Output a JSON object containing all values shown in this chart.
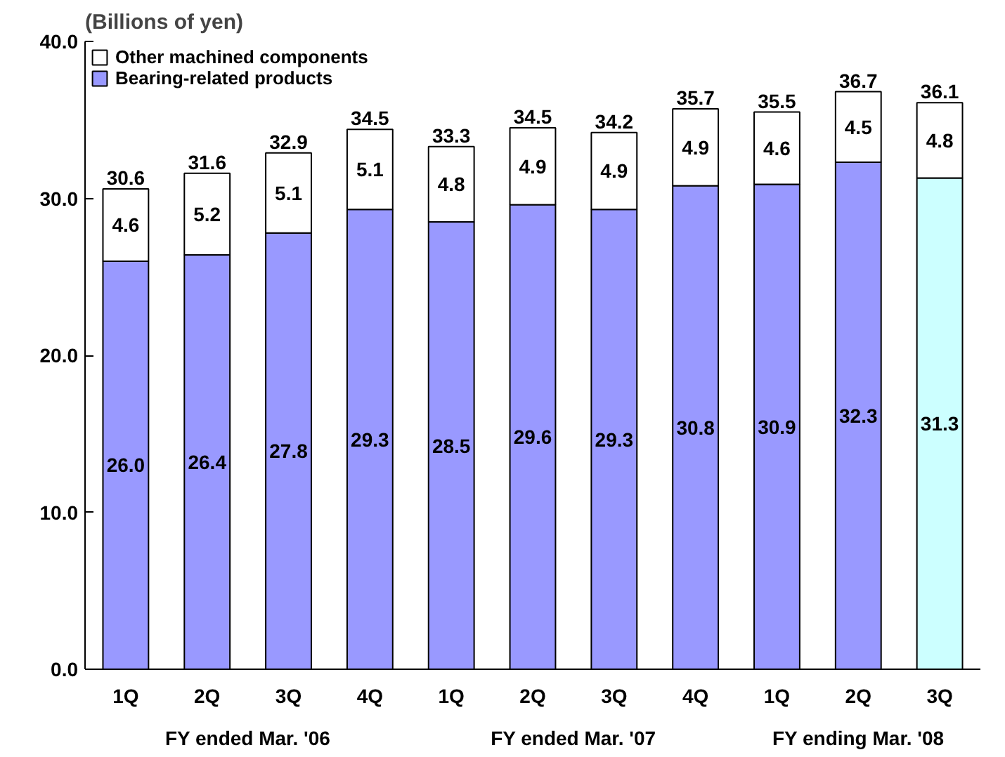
{
  "chart_data": {
    "type": "bar",
    "stacked": true,
    "ylabel": "(Billions of yen)",
    "categories": [
      "1Q",
      "2Q",
      "3Q",
      "4Q",
      "1Q",
      "2Q",
      "3Q",
      "4Q",
      "1Q",
      "2Q",
      "3Q"
    ],
    "series": [
      {
        "name": "Bearing-related products",
        "color": "#9999ff",
        "colors": [
          "#9999ff",
          "#9999ff",
          "#9999ff",
          "#9999ff",
          "#9999ff",
          "#9999ff",
          "#9999ff",
          "#9999ff",
          "#9999ff",
          "#9999ff",
          "#ccffff"
        ],
        "values": [
          26.0,
          26.4,
          27.8,
          29.3,
          28.5,
          29.6,
          29.3,
          30.8,
          30.9,
          32.3,
          31.3
        ],
        "value_labels": [
          "26.0",
          "26.4",
          "27.8",
          "29.3",
          "28.5",
          "29.6",
          "29.3",
          "30.8",
          "30.9",
          "32.3",
          "31.3"
        ]
      },
      {
        "name": "Other machined components",
        "color": "#ffffff",
        "values": [
          4.6,
          5.2,
          5.1,
          5.1,
          4.8,
          4.9,
          4.9,
          4.9,
          4.6,
          4.5,
          4.8
        ],
        "value_labels": [
          "4.6",
          "5.2",
          "5.1",
          "5.1",
          "4.8",
          "4.9",
          "4.9",
          "4.9",
          "4.6",
          "4.5",
          "4.8"
        ]
      }
    ],
    "totals": [
      "30.6",
      "31.6",
      "32.9",
      "34.5",
      "33.3",
      "34.5",
      "34.2",
      "35.7",
      "35.5",
      "36.7",
      "36.1"
    ],
    "ylim": [
      0,
      40
    ],
    "yticks": [
      {
        "value": 0,
        "label": "0.0"
      },
      {
        "value": 10,
        "label": "10.0"
      },
      {
        "value": 20,
        "label": "20.0"
      },
      {
        "value": 30,
        "label": "30.0"
      },
      {
        "value": 40,
        "label": "40.0"
      }
    ],
    "grid": false,
    "legend": "top left",
    "annotations": [
      "FY ended Mar. '06",
      "FY ended Mar. '07",
      "FY ending Mar. '08"
    ]
  }
}
